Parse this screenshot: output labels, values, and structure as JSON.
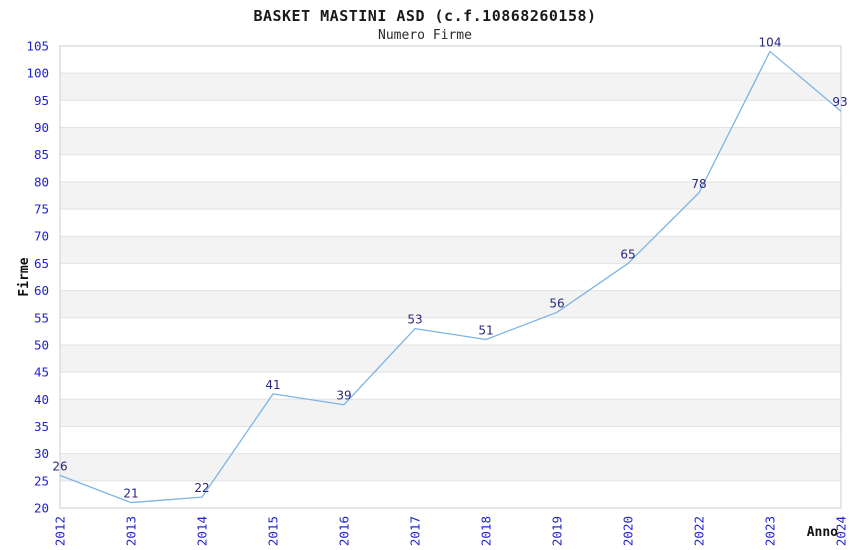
{
  "header": {
    "title": "BASKET MASTINI ASD (c.f.10868260158)",
    "subtitle": "Numero Firme"
  },
  "chart_data": {
    "type": "line",
    "title": "BASKET MASTINI ASD (c.f.10868260158)",
    "subtitle": "Numero Firme",
    "x": [
      "2012",
      "2013",
      "2014",
      "2015",
      "2016",
      "2017",
      "2018",
      "2019",
      "2020",
      "2022",
      "2023",
      "2024"
    ],
    "series": [
      {
        "name": "Numero Firme",
        "values": [
          26,
          21,
          22,
          41,
          39,
          53,
          51,
          56,
          65,
          78,
          104,
          93
        ]
      }
    ],
    "xlabel": "Anno",
    "ylabel": "Firme",
    "ylim": [
      20,
      105
    ],
    "ytick_step": 5,
    "grid": true,
    "legend_position": "none",
    "colors": {
      "line": "#7db4e6",
      "tick_label": "#2121ce",
      "data_label": "#28287f",
      "band": "#f3f3f3",
      "gridline": "#e2e2e2",
      "plot_border": "#cdcdcd",
      "axis_label": "#111111"
    }
  }
}
